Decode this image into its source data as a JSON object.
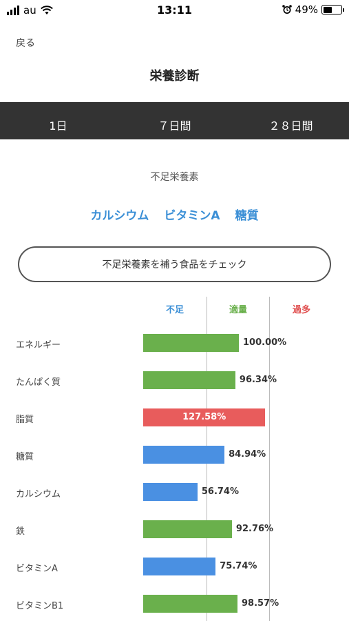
{
  "status_bar": {
    "carrier": "au",
    "time": "13:11",
    "battery": "49%",
    "battery_level": 0.49
  },
  "nav": {
    "back_label": "戻る",
    "title": "栄養診断"
  },
  "tabs": [
    {
      "label": "1日",
      "active": true
    },
    {
      "label": "７日間",
      "active": false
    },
    {
      "label": "２８日間",
      "active": false
    }
  ],
  "deficient": {
    "heading": "不足栄養素",
    "items": [
      "カルシウム",
      "ビタミンA",
      "糖質"
    ]
  },
  "check_button": "不足栄養素を補う食品をチェック",
  "chart_data": {
    "type": "bar",
    "orientation": "horizontal",
    "column_headers": [
      "不足",
      "適量",
      "過多"
    ],
    "colors": {
      "low": "#4a90e2",
      "ok": "#6ab04c",
      "high": "#e85c5c"
    },
    "categories": [
      "エネルギー",
      "たんぱく質",
      "脂質",
      "糖質",
      "カルシウム",
      "鉄",
      "ビタミンA",
      "ビタミンB1"
    ],
    "values": [
      100.0,
      96.34,
      127.58,
      84.94,
      56.74,
      92.76,
      75.74,
      98.57
    ],
    "labels": [
      "100.00%",
      "96.34%",
      "127.58%",
      "84.94%",
      "56.74%",
      "92.76%",
      "75.74%",
      "98.57%"
    ],
    "status": [
      "ok",
      "ok",
      "high",
      "low",
      "low",
      "ok",
      "low",
      "ok"
    ]
  }
}
